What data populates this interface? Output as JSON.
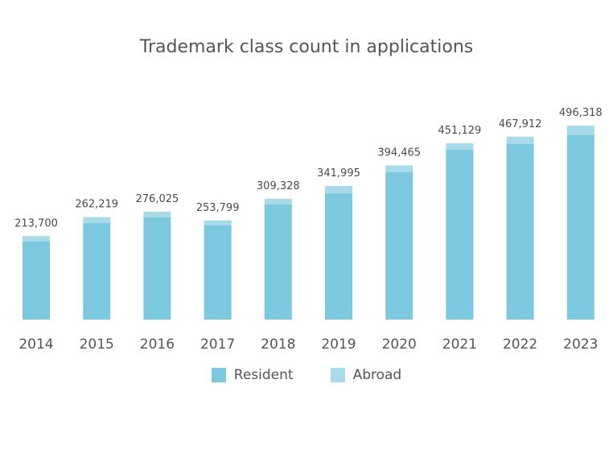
{
  "chart_data": {
    "type": "bar",
    "title": "Trademark class count in applications",
    "categories": [
      "2014",
      "2015",
      "2016",
      "2017",
      "2018",
      "2019",
      "2020",
      "2021",
      "2022",
      "2023"
    ],
    "series": [
      {
        "name": "Resident",
        "color": "#7cc8de",
        "values": [
          200000,
          247000,
          262000,
          241000,
          295000,
          323000,
          377000,
          435000,
          449000,
          473000
        ]
      },
      {
        "name": "Abroad",
        "color": "#a7dbe9",
        "values": [
          13700,
          15219,
          14025,
          12799,
          14328,
          18995,
          17465,
          16129,
          18912,
          23318
        ]
      }
    ],
    "totals": [
      "213,700",
      "262,219",
      "276,025",
      "253,799",
      "309,328",
      "341,995",
      "394,465",
      "451,129",
      "467,912",
      "496,318"
    ],
    "stacked": true,
    "ylim": [
      0,
      550000
    ],
    "xlabel": "",
    "ylabel": "",
    "grid": false,
    "legend": "bottom-center"
  }
}
